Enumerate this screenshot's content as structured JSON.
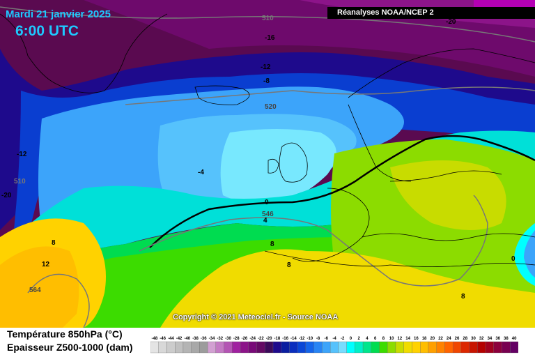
{
  "header": {
    "date": "Mardi 21 janvier 2025",
    "time": "6:00 UTC",
    "source": "Réanalyses NOAA/NCEP 2"
  },
  "footer": {
    "copyright": "Copyright © 2021 Meteociel.fr - Source NOAA",
    "legend_temp": "Température 850hPa (°C)",
    "legend_thickness": "Epaisseur Z500-1000 (dam)"
  },
  "scale": {
    "values": [
      "-48",
      "-46",
      "-44",
      "-42",
      "-40",
      "-38",
      "-36",
      "-34",
      "-32",
      "-30",
      "-28",
      "-26",
      "-24",
      "-22",
      "-20",
      "-18",
      "-16",
      "-14",
      "-12",
      "-10",
      "-8",
      "-6",
      "-4",
      "-2",
      "0",
      "2",
      "4",
      "6",
      "8",
      "10",
      "12",
      "14",
      "16",
      "18",
      "20",
      "22",
      "24",
      "26",
      "28",
      "30",
      "32",
      "34",
      "36",
      "38",
      "40"
    ],
    "colors": [
      "#e4e4e4",
      "#d8d8d8",
      "#cccccc",
      "#c0c0c0",
      "#b4b4b4",
      "#a8a8a8",
      "#9c9c9c",
      "#d2a0d2",
      "#c47ac4",
      "#b454b4",
      "#a020a0",
      "#8c1489",
      "#780a78",
      "#640a64",
      "#3c0a5a",
      "#1e0a8c",
      "#0a1ea0",
      "#0a2ebe",
      "#0a46d6",
      "#1464ea",
      "#2884f4",
      "#3ca4fa",
      "#56c2fc",
      "#78dcfe",
      "#00ffff",
      "#00f0c8",
      "#00e68c",
      "#00dc50",
      "#3cdc00",
      "#8cdc00",
      "#c8dc00",
      "#f0dc00",
      "#ffd200",
      "#ffbe00",
      "#ffa000",
      "#ff8200",
      "#ff6400",
      "#f04600",
      "#dc2800",
      "#c81400",
      "#b40000",
      "#a0001e",
      "#8c003c",
      "#780050",
      "#640064"
    ]
  },
  "map_labels": {
    "contours": [
      "510",
      "520",
      "546",
      "564",
      "0",
      "4",
      "-4",
      "8",
      "-8",
      "-12",
      "-16",
      "-20",
      "12"
    ]
  }
}
